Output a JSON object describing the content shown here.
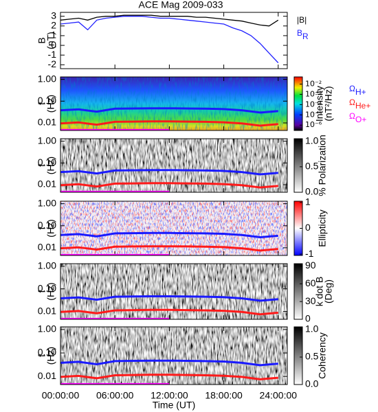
{
  "chart_data": [
    {
      "type": "line",
      "title": "ACE Mag 2009-033",
      "ylabel": [
        "B",
        "(nT)"
      ],
      "x": [
        0,
        1,
        2,
        3,
        4,
        5,
        6,
        7,
        8,
        9,
        10,
        11,
        12,
        13,
        14,
        15,
        16,
        17,
        18,
        19,
        20,
        21,
        22,
        23,
        24
      ],
      "series": [
        {
          "name": "|B|",
          "color": "#000000",
          "values": [
            2.6,
            2.7,
            2.8,
            2.6,
            2.9,
            3.0,
            3.0,
            3.1,
            3.1,
            3.1,
            3.1,
            3.0,
            3.0,
            3.0,
            3.0,
            2.9,
            2.9,
            2.8,
            2.7,
            2.6,
            2.5,
            2.3,
            2.1,
            2.0,
            2.6
          ]
        },
        {
          "name": "B",
          "subscript": "R",
          "color": "#2020ff",
          "values": [
            2.2,
            2.3,
            2.4,
            1.6,
            2.6,
            2.8,
            2.9,
            3.0,
            3.0,
            3.0,
            2.9,
            2.8,
            2.8,
            2.7,
            2.6,
            2.5,
            2.4,
            2.3,
            2.2,
            1.8,
            1.5,
            1.0,
            0.2,
            -0.8,
            -1.8
          ]
        }
      ],
      "xlim": [
        0,
        25
      ],
      "xticks": [
        0,
        6,
        12,
        18,
        24
      ],
      "ylim": [
        -2.4,
        3.4
      ],
      "yticks": [
        -2,
        -1,
        0,
        1,
        2,
        3
      ]
    },
    {
      "type": "spectrogram",
      "ylabel": [
        "f",
        "(Hz)"
      ],
      "colormap": "rainbow",
      "x": [
        0,
        2,
        4,
        6,
        8,
        10,
        12,
        14,
        16,
        18,
        20,
        22,
        24
      ],
      "series": [
        {
          "name": "Ω",
          "subscript": "H+",
          "color": "#1a1aff",
          "values": [
            0.038,
            0.042,
            0.033,
            0.045,
            0.046,
            0.047,
            0.047,
            0.046,
            0.045,
            0.043,
            0.038,
            0.03,
            0.035
          ]
        },
        {
          "name": "Ω",
          "subscript": "He+",
          "color": "#ff1a1a",
          "values": [
            0.0095,
            0.0105,
            0.0083,
            0.0112,
            0.0115,
            0.0117,
            0.0117,
            0.0115,
            0.0112,
            0.0107,
            0.0095,
            0.0075,
            0.0088
          ]
        },
        {
          "name": "Ω",
          "subscript": "O+",
          "color": "#ff00ff",
          "values": [
            0.0047,
            0.0047,
            0.0047,
            0.0047,
            0.0047,
            0.0047,
            0.0047,
            null,
            null,
            null,
            null,
            null,
            null
          ]
        }
      ],
      "xlim": [
        0,
        25
      ],
      "xticks": [
        0,
        6,
        12,
        18,
        24
      ],
      "ylog": true,
      "ylim": [
        0.0045,
        1.3
      ],
      "yticks": [
        {
          "value": 1,
          "label": "1.00"
        },
        {
          "value": 0.1,
          "label": "0.10"
        },
        {
          "value": 0.01,
          "label": "0.01"
        }
      ],
      "colorbar": {
        "label": [
          "Intensity",
          "(nT²/Hz)"
        ],
        "log": true,
        "lim": [
          3e-07,
          0.05
        ],
        "ticks": [
          {
            "value": 0.01,
            "label": "10⁻²"
          },
          {
            "value": 0.001,
            "label": "10⁻³"
          },
          {
            "value": 0.0001,
            "label": "10⁻⁴"
          },
          {
            "value": 1e-05,
            "label": "10⁻⁵"
          },
          {
            "value": 1e-06,
            "label": "10⁻⁶"
          }
        ]
      }
    },
    {
      "type": "spectrogram",
      "ylabel": [
        "f",
        "(Hz)"
      ],
      "colormap": "gray",
      "x": [
        0,
        2,
        4,
        6,
        8,
        10,
        12,
        14,
        16,
        18,
        20,
        22,
        24
      ],
      "series": [
        {
          "color": "#1a1aff",
          "values": [
            0.038,
            0.042,
            0.033,
            0.045,
            0.046,
            0.047,
            0.047,
            0.046,
            0.045,
            0.043,
            0.038,
            0.03,
            0.035
          ]
        },
        {
          "color": "#ff1a1a",
          "values": [
            0.0095,
            0.0105,
            0.0083,
            0.0112,
            0.0115,
            0.0117,
            0.0117,
            0.0115,
            0.0112,
            0.0107,
            0.0095,
            0.0075,
            0.0088
          ]
        },
        {
          "color": "#ff00ff",
          "values": [
            0.0047,
            0.0047,
            0.0047,
            0.0047,
            0.0047,
            0.0047,
            0.0047,
            null,
            null,
            null,
            null,
            null,
            null
          ]
        }
      ],
      "xlim": [
        0,
        25
      ],
      "xticks": [
        0,
        6,
        12,
        18,
        24
      ],
      "ylog": true,
      "ylim": [
        0.0045,
        1.3
      ],
      "yticks": [
        {
          "value": 1,
          "label": "1.00"
        },
        {
          "value": 0.1,
          "label": "0.10"
        },
        {
          "value": 0.01,
          "label": "0.01"
        }
      ],
      "colorbar": {
        "label": [
          "% Polarization"
        ],
        "lim": [
          0,
          1.05
        ],
        "ticks": [
          {
            "value": 1,
            "label": "1.0"
          },
          {
            "value": 0.5,
            "label": "0.5"
          },
          {
            "value": 0,
            "label": "0.0"
          }
        ]
      }
    },
    {
      "type": "spectrogram",
      "ylabel": [
        "f",
        "(Hz)"
      ],
      "colormap": "bwr",
      "x": [
        0,
        2,
        4,
        6,
        8,
        10,
        12,
        14,
        16,
        18,
        20,
        22,
        24
      ],
      "series": [
        {
          "color": "#1a1aff",
          "values": [
            0.038,
            0.042,
            0.033,
            0.045,
            0.046,
            0.047,
            0.047,
            0.046,
            0.045,
            0.043,
            0.038,
            0.03,
            0.035
          ]
        },
        {
          "color": "#ff1a1a",
          "values": [
            0.0095,
            0.0105,
            0.0083,
            0.0112,
            0.0115,
            0.0117,
            0.0117,
            0.0115,
            0.0112,
            0.0107,
            0.0095,
            0.0075,
            0.0088
          ]
        },
        {
          "color": "#ff00ff",
          "values": [
            0.0047,
            0.0047,
            0.0047,
            0.0047,
            0.0047,
            0.0047,
            0.0047,
            null,
            null,
            null,
            null,
            null,
            null
          ]
        }
      ],
      "xlim": [
        0,
        25
      ],
      "xticks": [
        0,
        6,
        12,
        18,
        24
      ],
      "ylog": true,
      "ylim": [
        0.0045,
        1.3
      ],
      "yticks": [
        {
          "value": 1,
          "label": "1.00"
        },
        {
          "value": 0.1,
          "label": "0.10"
        },
        {
          "value": 0.01,
          "label": "0.01"
        }
      ],
      "colorbar": {
        "label": [
          "Ellipticity"
        ],
        "lim": [
          -1.05,
          1.05
        ],
        "ticks": [
          1,
          0,
          -1
        ]
      }
    },
    {
      "type": "spectrogram",
      "ylabel": [
        "f",
        "(Hz)"
      ],
      "colormap": "gray",
      "x": [
        0,
        2,
        4,
        6,
        8,
        10,
        12,
        14,
        16,
        18,
        20,
        22,
        24
      ],
      "series": [
        {
          "color": "#1a1aff",
          "values": [
            0.038,
            0.042,
            0.033,
            0.045,
            0.046,
            0.047,
            0.047,
            0.046,
            0.045,
            0.043,
            0.038,
            0.03,
            0.035
          ]
        },
        {
          "color": "#ff1a1a",
          "values": [
            0.0095,
            0.0105,
            0.0083,
            0.0112,
            0.0115,
            0.0117,
            0.0117,
            0.0115,
            0.0112,
            0.0107,
            0.0095,
            0.0075,
            0.0088
          ]
        },
        {
          "color": "#ff00ff",
          "values": [
            0.0047,
            0.0047,
            0.0047,
            0.0047,
            0.0047,
            0.0047,
            0.0047,
            null,
            null,
            null,
            null,
            null,
            null
          ]
        }
      ],
      "xlim": [
        0,
        25
      ],
      "xticks": [
        0,
        6,
        12,
        18,
        24
      ],
      "ylog": true,
      "ylim": [
        0.0045,
        1.3
      ],
      "yticks": [
        {
          "value": 1,
          "label": "1.00"
        },
        {
          "value": 0.1,
          "label": "0.10"
        },
        {
          "value": 0.01,
          "label": "0.01"
        }
      ],
      "colorbar": {
        "label": [
          "k dot B",
          "(Deg)"
        ],
        "lim": [
          0,
          94
        ],
        "ticks": [
          90,
          60,
          30,
          0
        ]
      }
    },
    {
      "type": "spectrogram",
      "ylabel": [
        "f",
        "(Hz)"
      ],
      "colormap": "gray",
      "xlabel": "Time (UT)",
      "x": [
        0,
        2,
        4,
        6,
        8,
        10,
        12,
        14,
        16,
        18,
        20,
        22,
        24
      ],
      "series": [
        {
          "color": "#1a1aff",
          "values": [
            0.038,
            0.042,
            0.033,
            0.045,
            0.046,
            0.047,
            0.047,
            0.046,
            0.045,
            0.043,
            0.038,
            0.03,
            0.035
          ]
        },
        {
          "color": "#ff1a1a",
          "values": [
            0.0095,
            0.0105,
            0.0083,
            0.0112,
            0.0115,
            0.0117,
            0.0117,
            0.0115,
            0.0112,
            0.0107,
            0.0095,
            0.0075,
            0.0088
          ]
        },
        {
          "color": "#ff00ff",
          "values": [
            0.0047,
            0.0047,
            0.0047,
            0.0047,
            0.0047,
            0.0047,
            0.0047,
            null,
            null,
            null,
            null,
            null,
            null
          ]
        }
      ],
      "xlim": [
        0,
        25
      ],
      "ylog": true,
      "xticks": [
        {
          "value": 0,
          "label": "00:00:00"
        },
        {
          "value": 6,
          "label": "06:00:00"
        },
        {
          "value": 12,
          "label": "12:00:00"
        },
        {
          "value": 18,
          "label": "18:00:00"
        },
        {
          "value": 24,
          "label": "24:00:00"
        }
      ],
      "ylim": [
        0.0045,
        1.3
      ],
      "yticks": [
        {
          "value": 1,
          "label": "1.00"
        },
        {
          "value": 0.1,
          "label": "0.10"
        },
        {
          "value": 0.01,
          "label": "0.01"
        }
      ],
      "colorbar": {
        "label": [
          "Coherency"
        ],
        "lim": [
          0,
          1.05
        ],
        "ticks": [
          {
            "value": 1,
            "label": "1.0"
          },
          {
            "value": 0.5,
            "label": "0.5"
          },
          {
            "value": 0,
            "label": "0.0"
          }
        ]
      }
    }
  ]
}
